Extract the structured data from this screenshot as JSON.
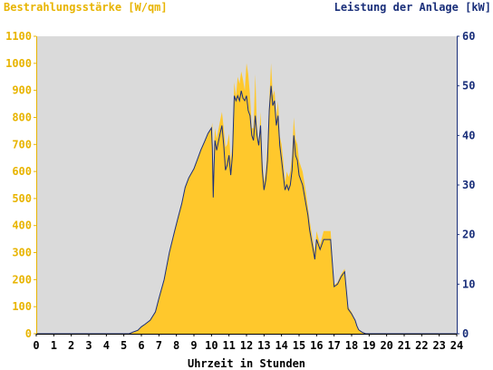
{
  "chart_data": {
    "type": "area",
    "left_axis_title": "Bestrahlungsstärke [W/qm]",
    "right_axis_title": "Leistung der Anlage [kW]",
    "xlabel": "Uhrzeit in Stunden",
    "x_ticks": [
      "0",
      "1",
      "2",
      "3",
      "4",
      "5",
      "6",
      "7",
      "8",
      "9",
      "10",
      "11",
      "12",
      "13",
      "14",
      "15",
      "16",
      "17",
      "18",
      "19",
      "20",
      "21",
      "22",
      "23",
      "24"
    ],
    "y_left_ticks": [
      "0",
      "100",
      "200",
      "300",
      "400",
      "500",
      "600",
      "700",
      "800",
      "900",
      "1000",
      "1100"
    ],
    "y_right_ticks": [
      "0",
      "10",
      "20",
      "30",
      "40",
      "50",
      "60"
    ],
    "xlim": [
      0,
      24
    ],
    "ylim_left": [
      0,
      1100
    ],
    "ylim_right": [
      0,
      60
    ],
    "grid": false,
    "colors": {
      "plot_background": "#dadada",
      "irradiance_fill": "#ffc82c",
      "power_line": "#1a2f7a",
      "left_axis_text": "#e8b400",
      "right_axis_text": "#1a2f7a",
      "x_axis_text": "#000000"
    },
    "series": [
      {
        "axis": "left",
        "kind": "area",
        "x": [
          0,
          5.3,
          5.5,
          5.8,
          6,
          6.2,
          6.5,
          6.8,
          7,
          7.3,
          7.6,
          7.9,
          8.1,
          8.3,
          8.5,
          8.7,
          9,
          9.2,
          9.4,
          9.6,
          9.8,
          10,
          10.05,
          10.1,
          10.15,
          10.2,
          10.3,
          10.5,
          10.6,
          10.7,
          10.8,
          10.9,
          11,
          11.1,
          11.2,
          11.3,
          11.4,
          11.5,
          11.6,
          11.7,
          11.8,
          11.9,
          12,
          12.1,
          12.2,
          12.3,
          12.4,
          12.5,
          12.6,
          12.7,
          12.8,
          12.9,
          13,
          13.1,
          13.2,
          13.3,
          13.4,
          13.5,
          13.6,
          13.7,
          13.8,
          13.9,
          14,
          14.1,
          14.2,
          14.3,
          14.4,
          14.5,
          14.6,
          14.7,
          14.8,
          14.9,
          15,
          15.1,
          15.2,
          15.3,
          15.4,
          15.5,
          15.6,
          15.7,
          15.8,
          15.9,
          16,
          16.2,
          16.4,
          16.6,
          16.8,
          17,
          17.2,
          17.4,
          17.6,
          17.8,
          18,
          18.2,
          18.3,
          18.4,
          18.6,
          18.8,
          19,
          19.3,
          19.6,
          20,
          24
        ],
        "y": [
          0,
          0,
          5,
          12,
          25,
          35,
          50,
          80,
          130,
          200,
          300,
          380,
          430,
          480,
          540,
          575,
          610,
          645,
          680,
          710,
          740,
          760,
          780,
          520,
          700,
          760,
          720,
          790,
          820,
          760,
          690,
          700,
          740,
          640,
          700,
          930,
          880,
          950,
          925,
          970,
          940,
          900,
          1000,
          960,
          880,
          760,
          760,
          960,
          760,
          700,
          820,
          650,
          560,
          600,
          700,
          860,
          1000,
          880,
          900,
          800,
          860,
          730,
          700,
          640,
          560,
          600,
          580,
          600,
          660,
          800,
          720,
          700,
          640,
          620,
          600,
          560,
          520,
          470,
          420,
          380,
          340,
          300,
          380,
          330,
          380,
          380,
          380,
          180,
          190,
          220,
          240,
          100,
          80,
          50,
          30,
          15,
          5,
          0,
          0,
          0,
          0,
          0,
          0
        ]
      },
      {
        "axis": "right",
        "kind": "line",
        "x": [
          0,
          5.3,
          5.5,
          5.8,
          6,
          6.2,
          6.5,
          6.8,
          7,
          7.3,
          7.6,
          7.9,
          8.1,
          8.3,
          8.5,
          8.7,
          9,
          9.2,
          9.4,
          9.6,
          9.8,
          10,
          10.05,
          10.1,
          10.15,
          10.2,
          10.3,
          10.5,
          10.6,
          10.7,
          10.8,
          10.9,
          11,
          11.1,
          11.2,
          11.3,
          11.4,
          11.5,
          11.6,
          11.7,
          11.8,
          11.9,
          12,
          12.1,
          12.2,
          12.3,
          12.4,
          12.5,
          12.6,
          12.7,
          12.8,
          12.9,
          13,
          13.1,
          13.2,
          13.3,
          13.4,
          13.5,
          13.6,
          13.7,
          13.8,
          13.9,
          14,
          14.1,
          14.2,
          14.3,
          14.4,
          14.5,
          14.6,
          14.7,
          14.8,
          14.9,
          15,
          15.1,
          15.2,
          15.3,
          15.4,
          15.5,
          15.6,
          15.7,
          15.8,
          15.9,
          16,
          16.2,
          16.4,
          16.6,
          16.8,
          17,
          17.2,
          17.4,
          17.6,
          17.8,
          18,
          18.2,
          18.3,
          18.4,
          18.6,
          18.8,
          19,
          19.3,
          19.6,
          20,
          24
        ],
        "y": [
          0,
          0,
          0.3,
          0.7,
          1.4,
          1.9,
          2.7,
          4.4,
          7.1,
          10.9,
          16.4,
          20.7,
          23.5,
          26.2,
          29.5,
          31.4,
          33.3,
          35.2,
          37.1,
          38.7,
          40.4,
          41.5,
          37.5,
          27.5,
          34,
          39,
          37,
          40.5,
          42,
          38,
          33,
          34,
          36,
          32,
          36,
          48,
          47,
          48,
          47,
          49,
          47.5,
          47,
          48,
          45,
          44,
          40,
          39,
          44,
          40,
          38,
          42,
          33,
          29,
          31,
          35,
          45,
          50,
          46,
          47,
          42,
          44,
          38,
          35,
          32,
          29,
          30,
          29,
          30,
          33,
          40,
          36,
          35,
          32,
          31,
          30,
          28,
          26,
          24,
          21,
          19,
          17,
          15,
          19,
          17,
          19,
          19,
          19,
          9.5,
          10,
          11.5,
          12.5,
          5,
          4,
          2.7,
          1.6,
          0.8,
          0.3,
          0,
          0,
          0,
          0,
          0,
          0
        ]
      }
    ]
  }
}
